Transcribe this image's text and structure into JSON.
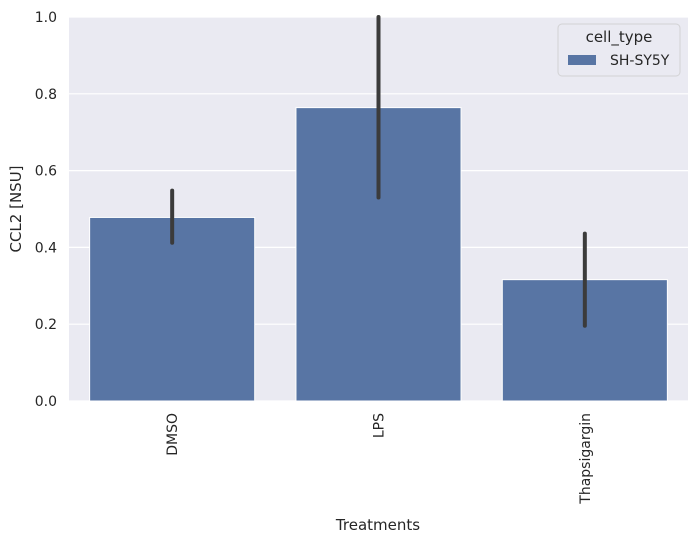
{
  "chart_data": {
    "type": "bar",
    "categories": [
      "DMSO",
      "LPS",
      "Thapsigargin"
    ],
    "series": [
      {
        "name": "SH-SY5Y",
        "values": [
          0.478,
          0.764,
          0.316
        ],
        "error_low": [
          0.412,
          0.53,
          0.196
        ],
        "error_high": [
          0.548,
          1.05,
          0.436
        ]
      }
    ],
    "title": "",
    "xlabel": "Treatments",
    "ylabel": "CCL2 [NSU]",
    "ylim": [
      0,
      1.0
    ],
    "yticks": [
      "0.0",
      "0.2",
      "0.4",
      "0.6",
      "0.8",
      "1.0"
    ],
    "grid": true,
    "legend": {
      "title": "cell_type",
      "placement": "top-right"
    },
    "colors": {
      "bar": "#5875a4",
      "error_bar": "#3b3b3b",
      "background": "#eaeaf2",
      "grid": "#ffffff"
    }
  }
}
